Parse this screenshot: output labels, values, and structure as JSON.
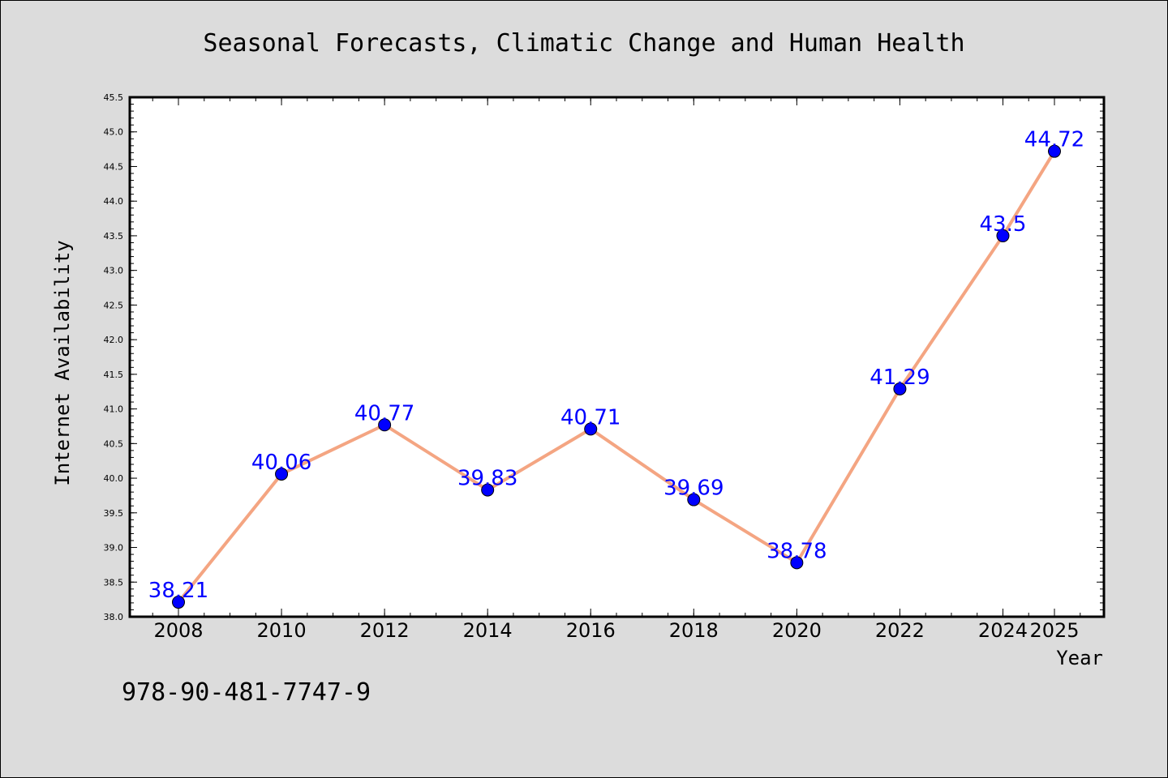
{
  "chart_data": {
    "type": "line",
    "title": "Seasonal Forecasts, Climatic Change and Human Health",
    "xlabel": "Year",
    "ylabel": "Internet Availability",
    "x": [
      2008,
      2010,
      2012,
      2014,
      2016,
      2018,
      2020,
      2022,
      2024,
      2025
    ],
    "series": [
      {
        "values": [
          38.21,
          40.06,
          40.77,
          39.83,
          40.71,
          39.69,
          38.78,
          41.29,
          43.5,
          44.72
        ],
        "labels": [
          "38.21",
          "40.06",
          "40.77",
          "39.83",
          "40.71",
          "39.69",
          "38.78",
          "41.29",
          "43.5",
          "44.72"
        ]
      }
    ],
    "ylim": [
      38.0,
      45.5
    ],
    "yticks": [
      "38.0",
      "38.5",
      "39.0",
      "39.5",
      "40.0",
      "40.5",
      "41.0",
      "41.5",
      "42.0",
      "42.5",
      "43.0",
      "43.5",
      "44.0",
      "44.5",
      "45.0",
      "45.5"
    ],
    "xticks": [
      "2008",
      "2010",
      "2012",
      "2014",
      "2016",
      "2018",
      "2020",
      "2022",
      "2024",
      "2025"
    ],
    "grid": false,
    "line_color": "#f4a582",
    "marker_color": "#0000ff",
    "label_color": "#0000ff"
  },
  "footer_text": "978-90-481-7747-9"
}
